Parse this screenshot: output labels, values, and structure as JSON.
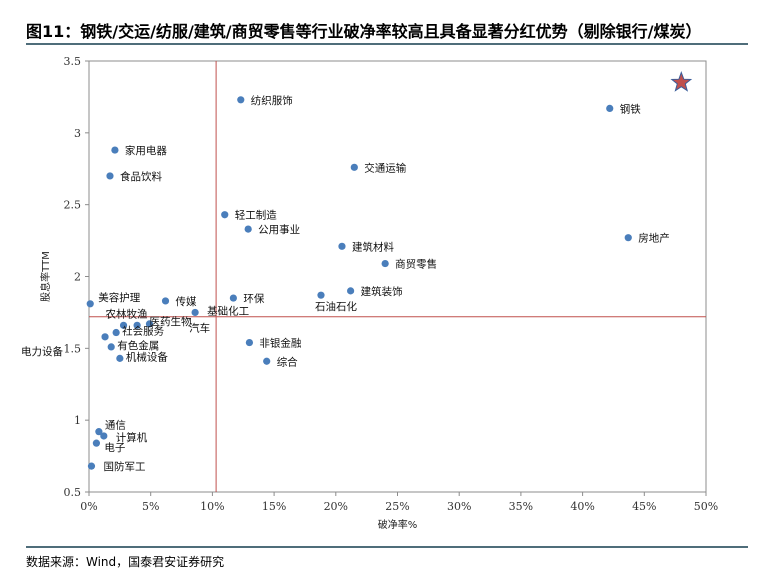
{
  "title": "图11：钢铁/交运/纺服/建筑/商贸零售等行业破净率较高且具备显著分红优势（剔除银行/煤炭）",
  "source": "数据来源：Wind，国泰君安证券研究",
  "colors": {
    "point": "#4a7ebb",
    "refline": "#c0504d",
    "star": "#c0504d",
    "rule": "#4f6d7a"
  },
  "chart_data": {
    "type": "scatter",
    "xlabel": "破净率%",
    "ylabel": "股息率TTM",
    "xlim": [
      0,
      50
    ],
    "ylim": [
      0.5,
      3.5
    ],
    "xticks": [
      0,
      5,
      10,
      15,
      20,
      25,
      30,
      35,
      40,
      45,
      50
    ],
    "xtick_labels": [
      "0%",
      "5%",
      "10%",
      "15%",
      "20%",
      "25%",
      "30%",
      "35%",
      "40%",
      "45%",
      "50%"
    ],
    "yticks": [
      0.5,
      1,
      1.5,
      2,
      2.5,
      3,
      3.5
    ],
    "ytick_labels": [
      "0.5",
      "1",
      "1.5",
      "2",
      "2.5",
      "3",
      "3.5"
    ],
    "ref_lines": {
      "x": 10.3,
      "y": 1.72
    },
    "highlight": {
      "x": 48,
      "y": 3.35,
      "shape": "star"
    },
    "points": [
      {
        "name": "纺织服饰",
        "x": 12.3,
        "y": 3.23
      },
      {
        "name": "钢铁",
        "x": 42.2,
        "y": 3.17
      },
      {
        "name": "家用电器",
        "x": 2.1,
        "y": 2.88
      },
      {
        "name": "交通运输",
        "x": 21.5,
        "y": 2.76
      },
      {
        "name": "食品饮料",
        "x": 1.7,
        "y": 2.7
      },
      {
        "name": "轻工制造",
        "x": 11.0,
        "y": 2.43
      },
      {
        "name": "公用事业",
        "x": 12.9,
        "y": 2.33
      },
      {
        "name": "房地产",
        "x": 43.7,
        "y": 2.27
      },
      {
        "name": "建筑材料",
        "x": 20.5,
        "y": 2.21
      },
      {
        "name": "商贸零售",
        "x": 24.0,
        "y": 2.09
      },
      {
        "name": "美容护理",
        "x": 0.1,
        "y": 1.81
      },
      {
        "name": "传媒",
        "x": 6.2,
        "y": 1.83
      },
      {
        "name": "环保",
        "x": 11.7,
        "y": 1.85
      },
      {
        "name": "建筑装饰",
        "x": 21.2,
        "y": 1.9
      },
      {
        "name": "石油石化",
        "x": 18.8,
        "y": 1.87
      },
      {
        "name": "基础化工",
        "x": 8.6,
        "y": 1.75
      },
      {
        "name": "农林牧渔",
        "x": 2.8,
        "y": 1.66
      },
      {
        "name": "医药生物",
        "x": 4.9,
        "y": 1.67
      },
      {
        "name": "汽车",
        "x": 3.9,
        "y": 1.66
      },
      {
        "name": "社会服务",
        "x": 2.2,
        "y": 1.61
      },
      {
        "name": "有色金属",
        "x": 1.8,
        "y": 1.51
      },
      {
        "name": "非银金融",
        "x": 13.0,
        "y": 1.54
      },
      {
        "name": "机械设备",
        "x": 2.5,
        "y": 1.43
      },
      {
        "name": "综合",
        "x": 14.4,
        "y": 1.41
      },
      {
        "name": "电力设备",
        "x": 1.3,
        "y": 1.58
      },
      {
        "name": "通信",
        "x": 0.8,
        "y": 0.92
      },
      {
        "name": "计算机",
        "x": 1.2,
        "y": 0.89
      },
      {
        "name": "电子",
        "x": 0.6,
        "y": 0.84
      },
      {
        "name": "国防军工",
        "x": 0.2,
        "y": 0.68
      }
    ]
  }
}
